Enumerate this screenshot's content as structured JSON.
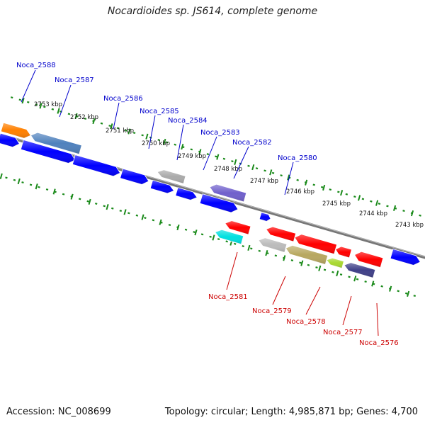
{
  "title": "Nocardioides sp. JS614, complete genome",
  "footer": {
    "accession": "Accession: NC_008699",
    "topology": "Topology: circular; Length: 4,985,871 bp; Genes: 4,700"
  },
  "colors": {
    "tick": "#1a8a1a",
    "backbone": "#777777",
    "top_label": "#0000cc",
    "bottom_label": "#cc0000"
  },
  "kbp_marks": [
    {
      "label": "2753 kbp"
    },
    {
      "label": "2752 kbp"
    },
    {
      "label": "2751 kbp"
    },
    {
      "label": "2750 kbp"
    },
    {
      "label": "2749 kbp"
    },
    {
      "label": "2748 kbp"
    },
    {
      "label": "2747 kbp"
    },
    {
      "label": "2746 kbp"
    },
    {
      "label": "2745 kbp"
    },
    {
      "label": "2744 kbp"
    },
    {
      "label": "2743 kbp"
    }
  ],
  "top_labels": [
    {
      "text": "Noca_2588"
    },
    {
      "text": "Noca_2587"
    },
    {
      "text": "Noca_2586"
    },
    {
      "text": "Noca_2585"
    },
    {
      "text": "Noca_2584"
    },
    {
      "text": "Noca_2583"
    },
    {
      "text": "Noca_2582"
    },
    {
      "text": "Noca_2580"
    }
  ],
  "bottom_labels": [
    {
      "text": "Noca_2581"
    },
    {
      "text": "Noca_2579"
    },
    {
      "text": "Noca_2578"
    },
    {
      "text": "Noca_2577"
    },
    {
      "text": "Noca_2576"
    }
  ],
  "genes": [
    {
      "color": "#ff8000",
      "strand": "top-outer"
    },
    {
      "color": "#4f81bd",
      "strand": "top-outer"
    },
    {
      "color": "#0000ff",
      "strand": "top-inner"
    },
    {
      "color": "#0000ff",
      "strand": "top-inner"
    },
    {
      "color": "#0000ff",
      "strand": "top-inner"
    },
    {
      "color": "#0000ff",
      "strand": "top-inner"
    },
    {
      "color": "#aaaaaa",
      "strand": "top-outer"
    },
    {
      "color": "#0000ff",
      "strand": "top-inner"
    },
    {
      "color": "#0000ff",
      "strand": "top-inner"
    },
    {
      "color": "#7060cc",
      "strand": "top-outer"
    },
    {
      "color": "#0000ff",
      "strand": "top-inner"
    },
    {
      "color": "#0000ff",
      "strand": "top-inner"
    },
    {
      "color": "#0000ff",
      "strand": "top-inner"
    },
    {
      "color": "#ff0000",
      "strand": "bottom-inner"
    },
    {
      "color": "#00e0e0",
      "strand": "bottom-outer"
    },
    {
      "color": "#ff0000",
      "strand": "bottom-inner"
    },
    {
      "color": "#ff0000",
      "strand": "bottom-inner"
    },
    {
      "color": "#ff0000",
      "strand": "bottom-inner"
    },
    {
      "color": "#ff0000",
      "strand": "bottom-inner"
    },
    {
      "color": "#bbbbbb",
      "strand": "bottom-outer"
    },
    {
      "color": "#b8a860",
      "strand": "bottom-outer"
    },
    {
      "color": "#a8d830",
      "strand": "bottom-outer"
    },
    {
      "color": "#404088",
      "strand": "bottom-outer"
    }
  ]
}
